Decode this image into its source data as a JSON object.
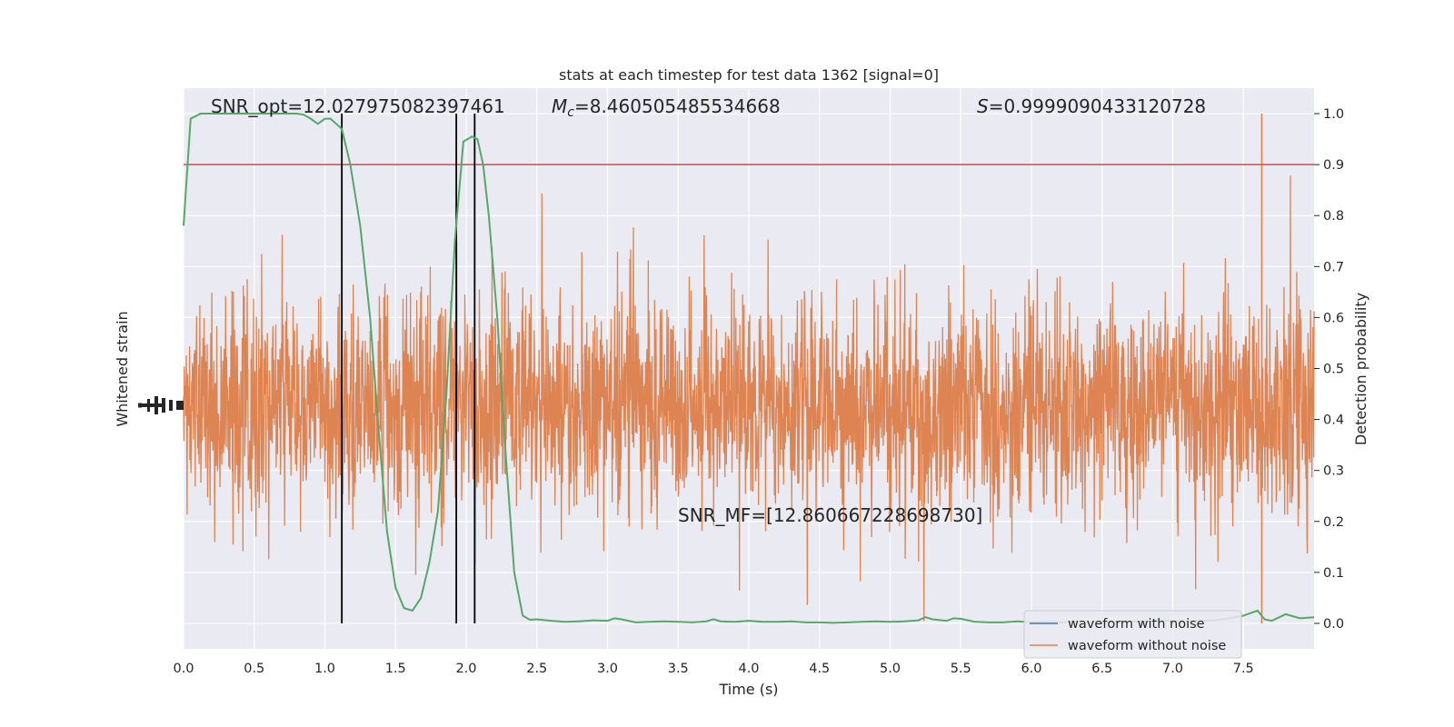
{
  "chart_data": {
    "type": "line",
    "title": "stats at each timestep for test data 1362 [signal=0]",
    "xlabel": "Time (s)",
    "ylabel_left": "Whitened strain",
    "ylabel_right": "Detection probability",
    "xlim": [
      0,
      8
    ],
    "ylim_right": [
      -0.05,
      1.05
    ],
    "x_ticks": [
      "0.0",
      "0.5",
      "1.0",
      "1.5",
      "2.0",
      "2.5",
      "3.0",
      "3.5",
      "4.0",
      "4.5",
      "5.0",
      "5.5",
      "6.0",
      "6.5",
      "7.0",
      "7.5"
    ],
    "x_tick_values": [
      0,
      0.5,
      1,
      1.5,
      2,
      2.5,
      3,
      3.5,
      4,
      4.5,
      5,
      5.5,
      6,
      6.5,
      7,
      7.5
    ],
    "y_right_ticks": [
      "0.0",
      "0.1",
      "0.2",
      "0.3",
      "0.4",
      "0.5",
      "0.6",
      "0.7",
      "0.8",
      "0.9",
      "1.0"
    ],
    "y_right_tick_values": [
      0,
      0.1,
      0.2,
      0.3,
      0.4,
      0.5,
      0.6,
      0.7,
      0.8,
      0.9,
      1.0
    ],
    "grid": true,
    "threshold": {
      "y": 0.9,
      "color": "#c44e52"
    },
    "vlines": [
      1.12,
      1.93,
      2.06
    ],
    "series": [
      {
        "name": "waveform with noise",
        "color": "#4c72b0",
        "kind": "strain"
      },
      {
        "name": "waveform without noise",
        "color": "#dd8452",
        "kind": "strain"
      },
      {
        "color": "#55a868",
        "kind": "probability",
        "x": [
          0.0,
          0.05,
          0.12,
          0.2,
          0.3,
          0.4,
          0.5,
          0.6,
          0.7,
          0.8,
          0.85,
          0.9,
          0.95,
          1.0,
          1.04,
          1.08,
          1.12,
          1.18,
          1.25,
          1.32,
          1.38,
          1.44,
          1.5,
          1.56,
          1.62,
          1.68,
          1.74,
          1.8,
          1.86,
          1.92,
          1.98,
          2.04,
          2.08,
          2.12,
          2.16,
          2.22,
          2.28,
          2.34,
          2.4,
          2.45,
          2.5,
          2.6,
          2.7,
          2.8,
          2.9,
          3.0,
          3.05,
          3.1,
          3.2,
          3.3,
          3.4,
          3.5,
          3.6,
          3.7,
          3.75,
          3.8,
          3.9,
          4.0,
          4.1,
          4.2,
          4.3,
          4.4,
          4.5,
          4.6,
          4.7,
          4.8,
          4.9,
          5.0,
          5.1,
          5.2,
          5.25,
          5.3,
          5.4,
          5.45,
          5.5,
          5.6,
          5.7,
          5.8,
          5.9,
          6.0,
          6.1,
          6.2,
          6.3,
          6.4,
          6.5,
          6.6,
          6.7,
          6.8,
          6.9,
          7.0,
          7.1,
          7.2,
          7.3,
          7.4,
          7.5,
          7.55,
          7.6,
          7.65,
          7.7,
          7.8,
          7.9,
          8.0
        ],
        "y": [
          0.78,
          0.99,
          1.0,
          1.0,
          1.0,
          1.0,
          1.0,
          1.0,
          1.0,
          1.0,
          0.998,
          0.99,
          0.98,
          0.99,
          0.99,
          0.98,
          0.97,
          0.9,
          0.78,
          0.6,
          0.38,
          0.18,
          0.07,
          0.03,
          0.025,
          0.05,
          0.12,
          0.22,
          0.45,
          0.75,
          0.945,
          0.955,
          0.95,
          0.9,
          0.8,
          0.6,
          0.33,
          0.1,
          0.015,
          0.007,
          0.008,
          0.005,
          0.003,
          0.004,
          0.006,
          0.005,
          0.01,
          0.008,
          0.002,
          0.003,
          0.004,
          0.003,
          0.002,
          0.004,
          0.008,
          0.004,
          0.003,
          0.005,
          0.003,
          0.003,
          0.004,
          0.002,
          0.002,
          0.001,
          0.002,
          0.003,
          0.004,
          0.003,
          0.004,
          0.006,
          0.012,
          0.008,
          0.005,
          0.01,
          0.009,
          0.003,
          0.002,
          0.002,
          0.004,
          0.002,
          0.003,
          0.002,
          0.004,
          0.003,
          0.002,
          0.003,
          0.004,
          0.003,
          0.006,
          0.005,
          0.004,
          0.005,
          0.006,
          0.01,
          0.015,
          0.02,
          0.025,
          0.008,
          0.005,
          0.018,
          0.01,
          0.012
        ]
      }
    ],
    "legend_position": "lower-right",
    "annotations": {
      "snr_opt": "SNR_opt=12.027975082397461",
      "mc_symbol": "M",
      "mc_sub": "c",
      "mc_value": "=8.460505485534668",
      "s_symbol": "S",
      "s_value": "=0.9999090433120728",
      "snr_mf": "SNR_MF=[12.860667228698730]"
    }
  },
  "colors": {
    "plot_background": "#eaeaf2",
    "grid": "#ffffff",
    "vline": "#000000",
    "text": "#262626"
  }
}
